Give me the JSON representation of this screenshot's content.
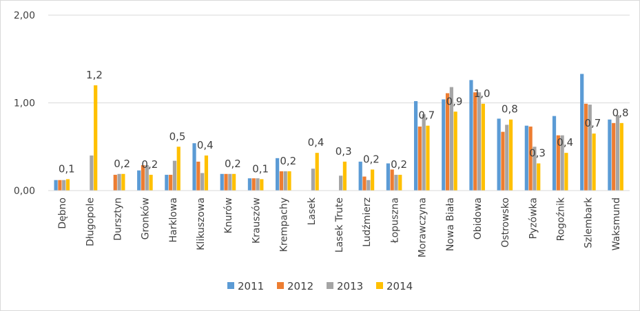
{
  "chart_data": {
    "type": "bar",
    "title": "",
    "xlabel": "",
    "ylabel": "",
    "ylim": [
      0,
      2
    ],
    "yticks": [
      {
        "value": 0,
        "label": "0,00"
      },
      {
        "value": 1,
        "label": "1,00"
      },
      {
        "value": 2,
        "label": "2,00"
      }
    ],
    "grid": true,
    "legend_position": "bottom",
    "categories": [
      "Dębno",
      "Długopole",
      "Dursztyn",
      "Gronków",
      "Harklowa",
      "Klikuszowa",
      "Knurów",
      "Krauszów",
      "Krempachy",
      "Lasek",
      "Lasek Trute",
      "Ludźmierz",
      "Łopuszna",
      "Morawczyna",
      "Nowa Biała",
      "Obidowa",
      "Ostrowsko",
      "Pyzówka",
      "Rogoźnik",
      "Szlembark",
      "Waksmund"
    ],
    "series": [
      {
        "name": "2011",
        "color": "#5b9bd5",
        "values": [
          0.12,
          0,
          0,
          0.23,
          0.18,
          0.54,
          0.19,
          0.14,
          0.37,
          0,
          0,
          0.33,
          0.31,
          1.02,
          1.04,
          1.26,
          0.82,
          0.74,
          0.85,
          1.33,
          0.81
        ]
      },
      {
        "name": "2012",
        "color": "#ed7d31",
        "values": [
          0.12,
          0,
          0.18,
          0.29,
          0.18,
          0.33,
          0.19,
          0.14,
          0.22,
          0,
          0,
          0.16,
          0.24,
          0.73,
          1.11,
          1.12,
          0.67,
          0.73,
          0.63,
          0.99,
          0.77
        ]
      },
      {
        "name": "2013",
        "color": "#a5a5a5",
        "values": [
          0.12,
          0.4,
          0.19,
          0.29,
          0.34,
          0.2,
          0.19,
          0.14,
          0.22,
          0.25,
          0.17,
          0.12,
          0.18,
          0.87,
          1.18,
          1.12,
          0.75,
          0.5,
          0.63,
          0.98,
          0.86
        ]
      },
      {
        "name": "2014",
        "color": "#ffc000",
        "values": [
          0.13,
          1.2,
          0.19,
          0.18,
          0.5,
          0.4,
          0.19,
          0.13,
          0.22,
          0.43,
          0.33,
          0.24,
          0.18,
          0.74,
          0.9,
          0.99,
          0.81,
          0.31,
          0.43,
          0.65,
          0.77
        ]
      }
    ],
    "data_labels": [
      "0,1",
      "1,2",
      "0,2",
      "0,2",
      "0,5",
      "0,4",
      "0,2",
      "0,1",
      "0,2",
      "0,4",
      "0,3",
      "0,2",
      "0,2",
      "0,7",
      "0,9",
      "1,0",
      "0,8",
      "0,3",
      "0,4",
      "0,7",
      "0,8"
    ]
  }
}
